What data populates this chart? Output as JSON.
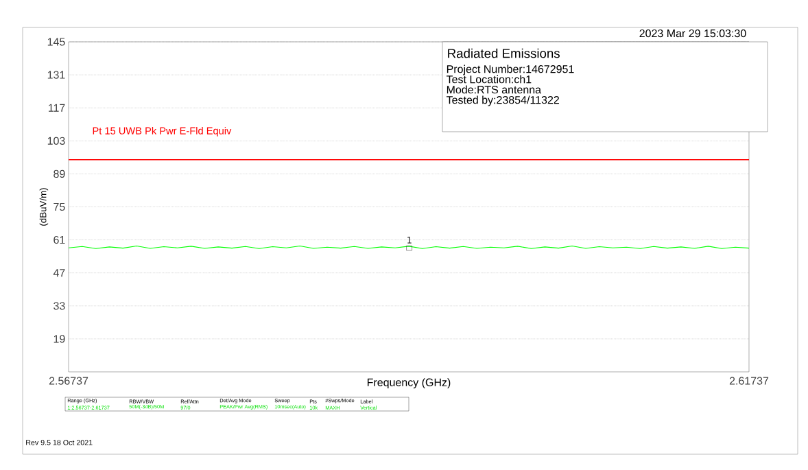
{
  "chart_data": {
    "type": "line",
    "xlabel": "Frequency (GHz)",
    "ylabel": "(dBuV/m)",
    "x": [
      2.56737,
      2.56837,
      2.56937,
      2.57037,
      2.57137,
      2.57237,
      2.57337,
      2.57437,
      2.57537,
      2.57637,
      2.57737,
      2.57837,
      2.57937,
      2.58037,
      2.58137,
      2.58237,
      2.58337,
      2.58437,
      2.58537,
      2.58637,
      2.58737,
      2.58837,
      2.58937,
      2.59037,
      2.59137,
      2.59237,
      2.59337,
      2.59437,
      2.59537,
      2.59637,
      2.59737,
      2.59837,
      2.59937,
      2.60037,
      2.60137,
      2.60237,
      2.60337,
      2.60437,
      2.60537,
      2.60637,
      2.60737,
      2.60837,
      2.60937,
      2.61037,
      2.61137,
      2.61237,
      2.61337,
      2.61437,
      2.61537,
      2.61637,
      2.61737
    ],
    "series": [
      {
        "color": "#00ff00",
        "values": [
          57.6,
          58.2,
          57.3,
          58.0,
          57.5,
          58.4,
          57.4,
          58.1,
          57.6,
          58.3,
          57.4,
          58.0,
          57.5,
          58.2,
          57.3,
          58.1,
          57.6,
          58.4,
          57.4,
          57.9,
          57.5,
          58.2,
          57.4,
          58.0,
          57.6,
          58.3,
          57.3,
          58.1,
          57.5,
          58.2,
          57.4,
          57.9,
          57.6,
          58.3,
          57.3,
          58.0,
          57.5,
          58.4,
          57.4,
          58.1,
          57.6,
          57.9,
          57.3,
          58.2,
          57.5,
          58.0,
          57.4,
          58.3,
          57.3,
          57.9,
          57.5
        ]
      }
    ],
    "xlim": [
      2.56737,
      2.61737
    ],
    "xticks": [
      2.56737,
      2.61737
    ],
    "ylim": [
      5,
      145
    ],
    "yticks": [
      19,
      33,
      47,
      61,
      75,
      89,
      103,
      117,
      131,
      145
    ],
    "grid": "y",
    "ref_lines": [
      {
        "axis": "y",
        "value": 95,
        "label": "Pt 15 UWB Pk Pwr E-Fld Equiv",
        "color": "#ff0000"
      }
    ],
    "annotations": [
      "2023 Mar 29   15:03:30",
      "Radiated Emissions",
      "Project Number:14672951",
      "Test Location:ch1",
      "Mode:RTS antenna",
      "Tested by:23854/11322",
      "Range (GHz)",
      "RBW/VBW",
      "Ref/Attn",
      "Det/Avg Mode",
      "Sweep",
      "Pts",
      "#Swps/Mode",
      "Label",
      "1:2.56737-2.61737",
      "50M(-3dB)/50M",
      "97/0",
      "PEAK/Pwr Avg(RMS)",
      "10msec(Auto)",
      "10k",
      "MAXH",
      "Vertical",
      "Rev 9.5 18 Oct 2021",
      {
        "text": "1",
        "x": 2.5924,
        "y": 57.5
      }
    ]
  }
}
